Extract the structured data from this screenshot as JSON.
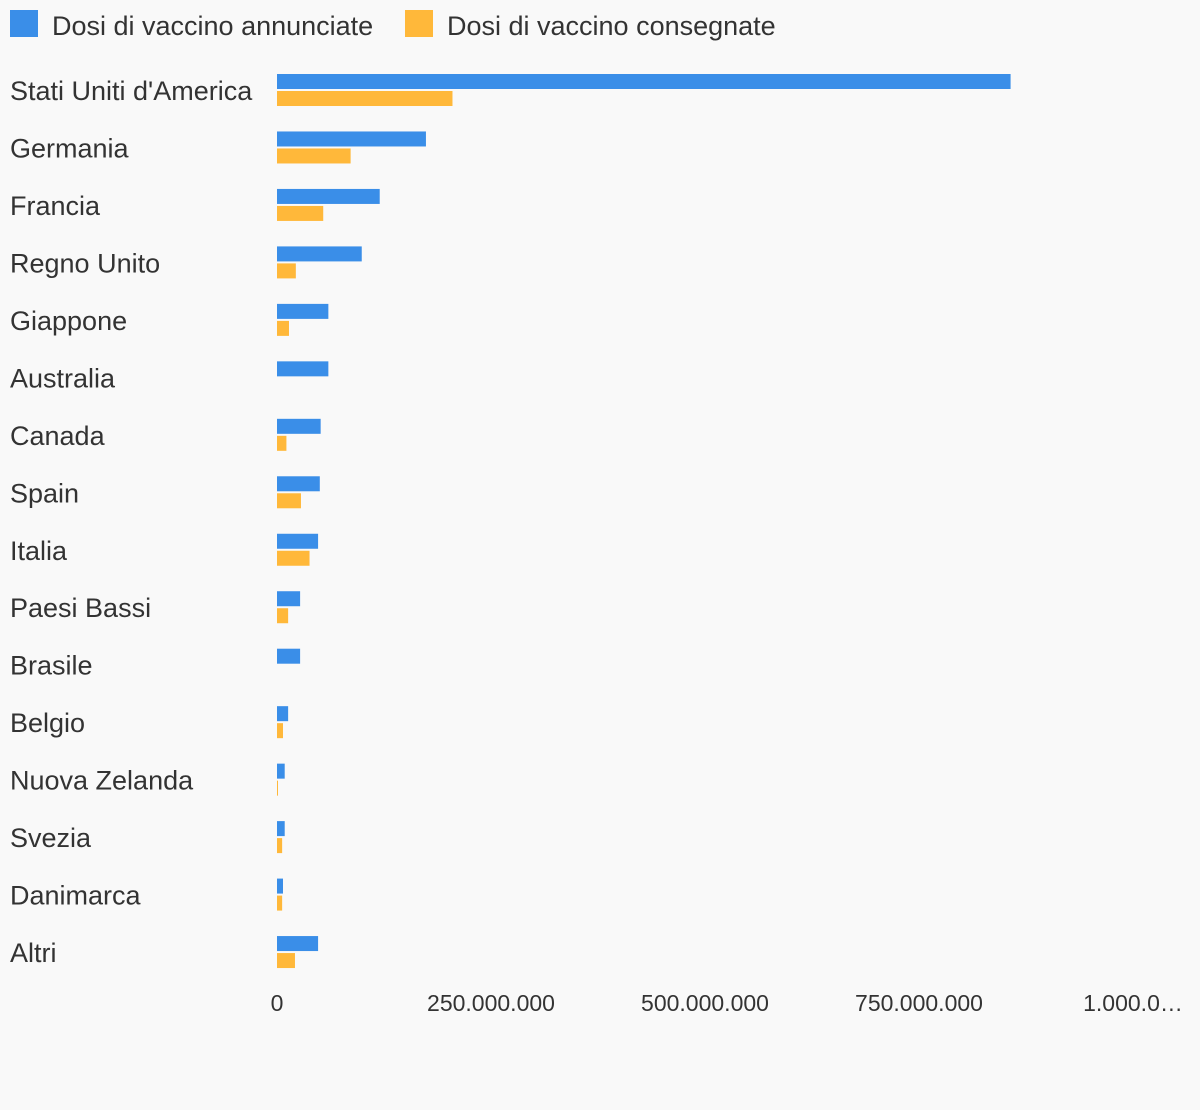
{
  "chart_data": {
    "type": "bar",
    "orientation": "horizontal",
    "title": "",
    "xlabel": "",
    "ylabel": "",
    "xlim": [
      0,
      1000000000
    ],
    "grid": false,
    "legend_position": "top-left",
    "categories": [
      "Stati Uniti d'America",
      "Germania",
      "Francia",
      "Regno Unito",
      "Giappone",
      "Australia",
      "Canada",
      "Spain",
      "Italia",
      "Paesi Bassi",
      "Brasile",
      "Belgio",
      "Nuova Zelanda",
      "Svezia",
      "Danimarca",
      "Altri"
    ],
    "series": [
      {
        "name": "Dosi di vaccino annunciate",
        "color": "#3a8ee8",
        "values": [
          857000000,
          174000000,
          120000000,
          99000000,
          60000000,
          60000000,
          51000000,
          50000000,
          48000000,
          27000000,
          27000000,
          13000000,
          9000000,
          9000000,
          7000000,
          48000000
        ]
      },
      {
        "name": "Dosi di vaccino consegnate",
        "color": "#ffb83a",
        "values": [
          205000000,
          86000000,
          54000000,
          22000000,
          14000000,
          0,
          11000000,
          28000000,
          38000000,
          13000000,
          0,
          7000000,
          1000000,
          6000000,
          6000000,
          21000000
        ]
      }
    ],
    "x_ticks": [
      "0",
      "250.000.000",
      "500.000.000",
      "750.000.000",
      "1.000.0…"
    ]
  }
}
